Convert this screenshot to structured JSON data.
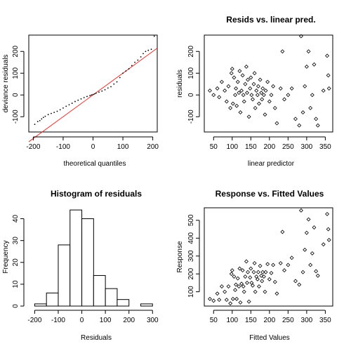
{
  "chart_data": [
    {
      "type": "scatter",
      "title": "",
      "xlabel": "theoretical quantiles",
      "ylabel": "deviance residuals",
      "xlim": [
        -215,
        215
      ],
      "ylim": [
        -170,
        275
      ],
      "xticks": [
        "-200",
        "-100",
        "0",
        "100",
        "200"
      ],
      "yticks": [
        "-100",
        "0",
        "100",
        "200"
      ],
      "reference_line": {
        "x": [
          -215,
          215
        ],
        "y": [
          -215,
          215
        ],
        "color": "#e8312a"
      },
      "x": [
        -195,
        -185,
        -178,
        -172,
        -166,
        -160,
        -150,
        -140,
        -130,
        -120,
        -110,
        -100,
        -90,
        -80,
        -70,
        -60,
        -50,
        -40,
        -30,
        -20,
        -10,
        -5,
        0,
        5,
        10,
        20,
        30,
        40,
        50,
        60,
        70,
        80,
        90,
        100,
        110,
        120,
        130,
        140,
        150,
        160,
        168,
        176,
        185,
        195,
        205
      ],
      "y": [
        -135,
        -122,
        -118,
        -110,
        -103,
        -98,
        -90,
        -85,
        -80,
        -75,
        -68,
        -60,
        -52,
        -45,
        -38,
        -30,
        -24,
        -18,
        -12,
        -7,
        -3,
        0,
        2,
        5,
        8,
        13,
        18,
        24,
        32,
        38,
        50,
        60,
        80,
        100,
        110,
        120,
        135,
        150,
        160,
        175,
        190,
        200,
        205,
        210,
        270
      ]
    },
    {
      "type": "scatter",
      "title": "Resids vs. linear pred.",
      "xlabel": "linear predictor",
      "ylabel": "residuals",
      "xlim": [
        25,
        370
      ],
      "ylim": [
        -170,
        275
      ],
      "xticks": [
        "50",
        "100",
        "150",
        "200",
        "250",
        "300",
        "350"
      ],
      "yticks": [
        "-100",
        "0",
        "100",
        "200"
      ],
      "x": [
        40,
        50,
        60,
        65,
        72,
        80,
        85,
        90,
        95,
        98,
        100,
        102,
        105,
        108,
        110,
        112,
        115,
        118,
        120,
        122,
        125,
        128,
        130,
        132,
        135,
        138,
        140,
        142,
        145,
        148,
        150,
        152,
        155,
        158,
        160,
        162,
        165,
        168,
        170,
        172,
        175,
        178,
        180,
        182,
        185,
        188,
        190,
        195,
        200,
        205,
        210,
        215,
        220,
        230,
        235,
        240,
        250,
        260,
        270,
        280,
        285,
        290,
        295,
        300,
        305,
        310,
        315,
        320,
        325,
        330,
        345,
        355,
        358,
        360
      ],
      "y": [
        20,
        0,
        30,
        -10,
        60,
        20,
        -30,
        40,
        -60,
        100,
        120,
        -40,
        80,
        0,
        30,
        -50,
        60,
        10,
        110,
        -80,
        20,
        90,
        0,
        -30,
        50,
        130,
        10,
        70,
        -100,
        30,
        80,
        0,
        -20,
        50,
        100,
        -60,
        20,
        0,
        40,
        -40,
        70,
        10,
        -20,
        30,
        0,
        -90,
        20,
        60,
        -30,
        0,
        40,
        -60,
        -130,
        30,
        200,
        -20,
        0,
        30,
        -110,
        -140,
        270,
        -80,
        40,
        130,
        200,
        -60,
        0,
        140,
        -110,
        -140,
        20,
        180,
        90,
        30
      ]
    },
    {
      "type": "bar",
      "title": "Histogram of residuals",
      "xlabel": "Residuals",
      "ylabel": "Frequency",
      "xlim": [
        -225,
        320
      ],
      "ylim": [
        0,
        45
      ],
      "xticks": [
        "-200",
        "-100",
        "0",
        "100",
        "200",
        "300"
      ],
      "yticks": [
        "0",
        "10",
        "20",
        "30",
        "40"
      ],
      "bin_edges": [
        -200,
        -150,
        -100,
        -50,
        0,
        50,
        100,
        150,
        200,
        250,
        300
      ],
      "values": [
        1,
        6,
        28,
        44,
        40,
        14,
        8,
        3,
        0,
        1
      ]
    },
    {
      "type": "scatter",
      "title": "Response vs. Fitted Values",
      "xlabel": "Fitted Values",
      "ylabel": "Response",
      "xlim": [
        25,
        370
      ],
      "ylim": [
        20,
        570
      ],
      "xticks": [
        "50",
        "100",
        "150",
        "200",
        "250",
        "300",
        "350"
      ],
      "yticks": [
        "100",
        "200",
        "300",
        "400",
        "500"
      ],
      "x": [
        40,
        50,
        60,
        65,
        72,
        80,
        85,
        90,
        95,
        98,
        100,
        102,
        105,
        108,
        110,
        112,
        115,
        118,
        120,
        122,
        125,
        128,
        130,
        132,
        135,
        138,
        140,
        142,
        145,
        148,
        150,
        152,
        155,
        158,
        160,
        162,
        165,
        168,
        170,
        172,
        175,
        178,
        180,
        182,
        185,
        188,
        190,
        195,
        200,
        205,
        210,
        215,
        220,
        230,
        235,
        240,
        250,
        260,
        270,
        280,
        285,
        290,
        295,
        300,
        305,
        310,
        315,
        320,
        325,
        330,
        345,
        355,
        358,
        360
      ],
      "y": [
        60,
        50,
        90,
        55,
        130,
        100,
        55,
        130,
        35,
        200,
        220,
        60,
        185,
        110,
        140,
        60,
        175,
        130,
        230,
        40,
        145,
        220,
        130,
        100,
        185,
        270,
        150,
        210,
        45,
        180,
        230,
        150,
        135,
        210,
        260,
        100,
        185,
        170,
        210,
        130,
        245,
        190,
        160,
        210,
        185,
        100,
        210,
        255,
        170,
        205,
        250,
        155,
        90,
        260,
        435,
        220,
        250,
        290,
        160,
        140,
        555,
        210,
        335,
        430,
        505,
        250,
        315,
        460,
        215,
        190,
        365,
        535,
        450,
        390
      ]
    }
  ]
}
